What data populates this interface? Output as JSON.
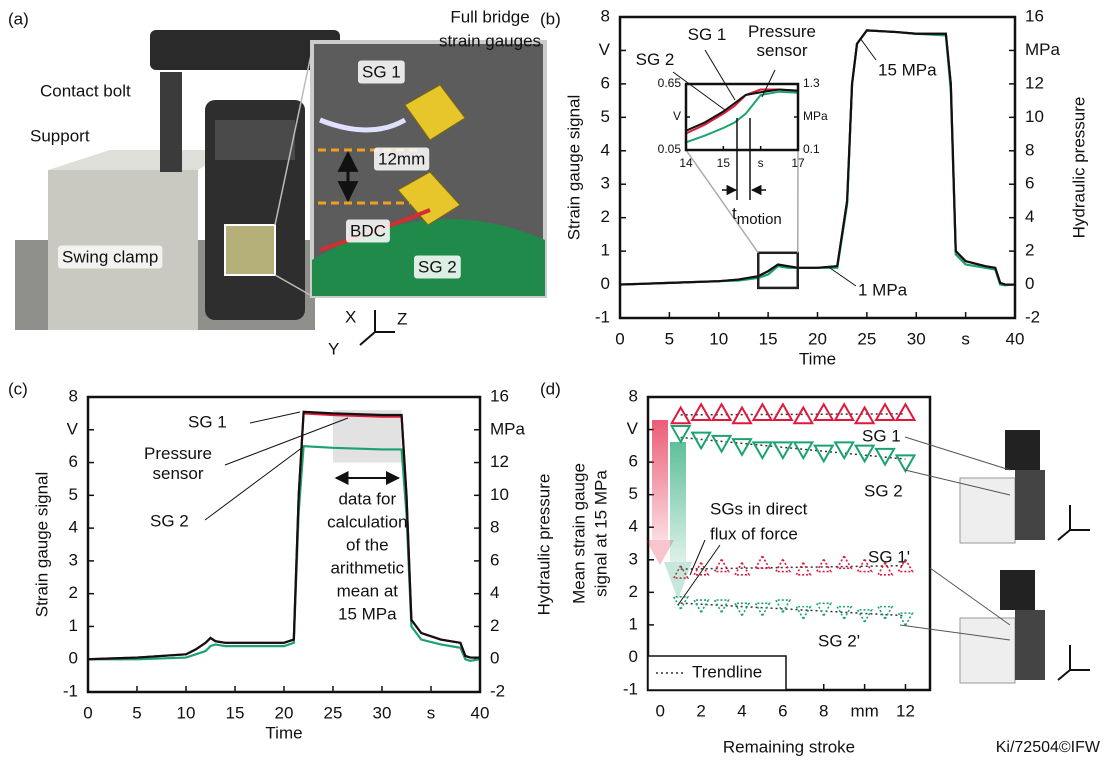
{
  "photo": {
    "panel": "(a)",
    "labels": [
      "Contact bolt",
      "Support",
      "Swing clamp",
      "SG 1",
      "12mm",
      "BDC",
      "SG 2",
      "X",
      "Z",
      "Y"
    ],
    "heading_lines": [
      "Full bridge",
      "strain gauges"
    ]
  },
  "footer": "Ki/72504©IFW",
  "chart_data": [
    {
      "type": "line",
      "panel": "(b)",
      "xlabel": "Time",
      "ylabel": "Strain gauge signal",
      "y2label": "Hydraulic pressure",
      "xlim": [
        0,
        40
      ],
      "ylim": [
        -1,
        8
      ],
      "y2lim": [
        -2,
        16
      ],
      "xticks": [
        0,
        5,
        10,
        15,
        20,
        25,
        30,
        {
          "value": 35,
          "label": "s"
        },
        40
      ],
      "yticks": [
        -1,
        0,
        1,
        2,
        3,
        4,
        5,
        6,
        {
          "value": 7,
          "label": "V"
        },
        8
      ],
      "y2ticks": [
        -2,
        0,
        2,
        4,
        6,
        8,
        10,
        12,
        {
          "value": 14,
          "label": "MPa"
        },
        16
      ],
      "x": [
        0,
        5,
        10,
        12,
        14,
        15,
        16,
        17,
        18,
        20,
        22,
        23,
        23.5,
        24,
        25,
        28,
        30,
        33,
        33.5,
        34,
        35,
        37,
        38,
        38.5,
        39,
        40
      ],
      "series": [
        {
          "color": "#e2183b",
          "values": [
            0,
            0.05,
            0.1,
            0.15,
            0.25,
            0.4,
            0.6,
            0.55,
            0.5,
            0.5,
            0.55,
            2.5,
            6,
            7.2,
            7.6,
            7.55,
            7.5,
            7.5,
            6,
            1,
            0.7,
            0.55,
            0.5,
            0.05,
            0,
            0
          ]
        },
        {
          "color": "#1aa36f",
          "values": [
            0,
            0.05,
            0.1,
            0.12,
            0.2,
            0.3,
            0.55,
            0.5,
            0.5,
            0.5,
            0.5,
            2.4,
            6,
            7.2,
            7.6,
            7.55,
            7.5,
            7.45,
            5.8,
            0.9,
            0.6,
            0.5,
            0.45,
            0,
            -0.02,
            0
          ]
        },
        {
          "color": "#111111",
          "axis": "y2",
          "values": [
            0,
            0.1,
            0.2,
            0.3,
            0.5,
            0.8,
            1.2,
            1.1,
            1,
            1,
            1.1,
            5,
            12,
            14.4,
            15.2,
            15.1,
            15,
            15,
            12,
            2,
            1.4,
            1.1,
            1,
            0.1,
            0,
            0
          ]
        }
      ],
      "annotations": [
        "15 MPa",
        "1 MPa"
      ]
    },
    {
      "type": "line",
      "xlim": [
        14,
        17
      ],
      "ylim": [
        0.05,
        0.65
      ],
      "y2lim": [
        0.1,
        1.3
      ],
      "xticks": [
        14,
        15,
        {
          "value": 16,
          "label": "s"
        },
        17
      ],
      "yticks": [
        0.05,
        {
          "value": 0.35,
          "label": "V"
        },
        0.65
      ],
      "y2ticks": [
        0.1,
        {
          "value": 0.7,
          "label": "MPa"
        },
        1.3
      ],
      "x": [
        14,
        14.5,
        15,
        15.3,
        15.6,
        16,
        16.5,
        17
      ],
      "series": [
        {
          "name": "SG 1",
          "color": "#e2183b",
          "values": [
            0.2,
            0.28,
            0.38,
            0.45,
            0.55,
            0.6,
            0.6,
            0.58
          ]
        },
        {
          "name": "SG 2",
          "color": "#1aa36f",
          "values": [
            0.12,
            0.18,
            0.25,
            0.3,
            0.38,
            0.55,
            0.58,
            0.57
          ]
        },
        {
          "name": "Pressure sensor",
          "color": "#111111",
          "axis": "y2",
          "values": [
            0.45,
            0.6,
            0.8,
            0.95,
            1.1,
            1.15,
            1.2,
            1.18
          ]
        }
      ],
      "annotation": {
        "main": "t",
        "sub": "motion"
      }
    },
    {
      "type": "line",
      "panel": "(c)",
      "xlabel": "Time",
      "ylabel": "Strain gauge signal",
      "y2label": "Hydraulic pressure",
      "xlim": [
        0,
        40
      ],
      "ylim": [
        -1,
        8
      ],
      "y2lim": [
        -2,
        16
      ],
      "xticks": [
        0,
        5,
        10,
        15,
        20,
        25,
        30,
        {
          "value": 35,
          "label": "s"
        },
        40
      ],
      "yticks": [
        -1,
        0,
        1,
        2,
        3,
        4,
        5,
        6,
        {
          "value": 7,
          "label": "V"
        },
        8
      ],
      "y2ticks": [
        -2,
        0,
        2,
        4,
        6,
        8,
        10,
        12,
        {
          "value": 14,
          "label": "MPa"
        },
        16
      ],
      "highlight_x": [
        25,
        32
      ],
      "x": [
        0,
        5,
        10,
        11,
        12,
        12.5,
        13,
        14,
        16,
        20,
        21,
        21.5,
        22,
        25,
        30,
        32,
        32.5,
        33,
        34,
        36,
        38,
        38.5,
        39,
        40
      ],
      "series": [
        {
          "name": "SG 2",
          "color": "#1aa36f",
          "values": [
            0,
            0,
            0.05,
            0.15,
            0.25,
            0.4,
            0.45,
            0.4,
            0.4,
            0.4,
            0.5,
            4.5,
            6.5,
            6.45,
            6.4,
            6.4,
            4.4,
            1,
            0.6,
            0.45,
            0.35,
            0,
            -0.05,
            0
          ]
        },
        {
          "name": "SG 1",
          "color": "#e2183b",
          "values": [
            0,
            0.05,
            0.15,
            0.3,
            0.5,
            0.65,
            0.55,
            0.5,
            0.5,
            0.5,
            0.6,
            5,
            7.5,
            7.45,
            7.4,
            7.4,
            5,
            1.2,
            0.8,
            0.6,
            0.5,
            0.1,
            0.05,
            0.05
          ]
        },
        {
          "name": "Pressure sensor",
          "color": "#111111",
          "axis": "y2",
          "values": [
            0,
            0.1,
            0.3,
            0.6,
            1,
            1.3,
            1.1,
            1,
            1,
            1,
            1.2,
            10,
            15.1,
            15,
            14.9,
            14.9,
            10,
            2.4,
            1.6,
            1.2,
            1,
            0.2,
            0.1,
            0.1
          ]
        }
      ],
      "annotation_lines": [
        "data for",
        "calculation",
        "of the",
        "arithmetic",
        "mean at",
        "15 MPa"
      ]
    },
    {
      "type": "scatter",
      "panel": "(d)",
      "xlabel": "Remaining stroke",
      "ylabel_lines": [
        "Mean strain gauge",
        "signal at 15 MPa"
      ],
      "xlim": [
        -0.6,
        13.2
      ],
      "ylim": [
        -1,
        8
      ],
      "xticks": [
        0,
        2,
        4,
        6,
        8,
        {
          "value": 10,
          "label": "mm"
        },
        12
      ],
      "yticks": [
        -1,
        0,
        1,
        2,
        3,
        4,
        5,
        6,
        {
          "value": 7,
          "label": "V"
        },
        8
      ],
      "legend": "lower left",
      "trendline_label": "Trendline",
      "x": [
        1,
        2,
        3,
        4,
        5,
        6,
        7,
        8,
        9,
        10,
        11,
        12
      ],
      "series": [
        {
          "name": "SG 1",
          "color": "#e2183b",
          "marker": "triangle-up",
          "dashed": false,
          "values": [
            7.4,
            7.5,
            7.5,
            7.4,
            7.5,
            7.5,
            7.4,
            7.5,
            7.5,
            7.4,
            7.5,
            7.5
          ]
        },
        {
          "name": "SG 2",
          "color": "#1aa36f",
          "marker": "triangle-down",
          "dashed": false,
          "values": [
            6.9,
            6.7,
            6.6,
            6.5,
            6.4,
            6.4,
            6.4,
            6.3,
            6.4,
            6.3,
            6.2,
            6.0
          ]
        },
        {
          "name": "SG 1'",
          "color": "#e2183b",
          "marker": "triangle-up",
          "dashed": true,
          "values": [
            2.6,
            2.7,
            2.8,
            2.7,
            2.9,
            2.8,
            2.7,
            2.8,
            2.9,
            2.8,
            2.7,
            2.8
          ]
        },
        {
          "name": "SG 2'",
          "color": "#1aa36f",
          "marker": "triangle-down",
          "dashed": true,
          "values": [
            1.7,
            1.6,
            1.6,
            1.5,
            1.5,
            1.6,
            1.4,
            1.5,
            1.4,
            1.3,
            1.4,
            1.2
          ]
        }
      ],
      "annotation_lines": [
        "SGs in direct",
        "flux of force"
      ]
    }
  ]
}
